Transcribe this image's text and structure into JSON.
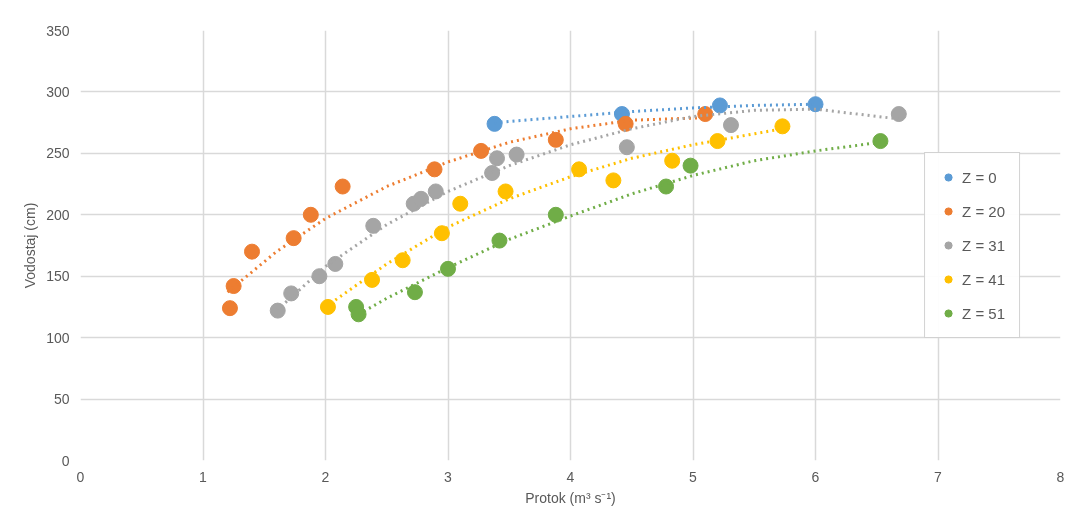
{
  "chart_data": {
    "type": "scatter",
    "xlabel": "Protok (m³ s⁻¹)",
    "ylabel": "Vodostaj (cm)",
    "xlim": [
      0,
      8
    ],
    "ylim": [
      0,
      350
    ],
    "xticks": [
      0,
      1,
      2,
      3,
      4,
      5,
      6,
      7,
      8
    ],
    "yticks": [
      0,
      50,
      100,
      150,
      200,
      250,
      300,
      350
    ],
    "grid": true,
    "legend": "right",
    "marker": "circle",
    "series": [
      {
        "name": "Z = 0",
        "color": "#5b9bd5",
        "x": [
          3.38,
          4.42,
          5.22,
          6.0
        ],
        "values": [
          274,
          282,
          289,
          290
        ]
      },
      {
        "name": "Z = 20",
        "color": "#ed7d31",
        "x": [
          1.22,
          1.25,
          1.4,
          1.74,
          1.88,
          2.14,
          2.89,
          3.27,
          3.88,
          4.45,
          5.1
        ],
        "values": [
          124,
          142,
          170,
          181,
          200,
          223,
          237,
          252,
          261,
          274,
          282
        ]
      },
      {
        "name": "Z = 31",
        "color": "#a5a5a5",
        "x": [
          1.61,
          1.72,
          1.95,
          2.08,
          2.39,
          2.72,
          2.78,
          2.9,
          3.36,
          3.4,
          3.56,
          4.46,
          5.31,
          6.68
        ],
        "values": [
          122,
          136,
          150,
          160,
          191,
          209,
          213,
          219,
          234,
          246,
          249,
          255,
          273,
          282
        ]
      },
      {
        "name": "Z = 41",
        "color": "#ffc000",
        "x": [
          2.02,
          2.38,
          2.63,
          2.95,
          3.1,
          3.47,
          4.07,
          4.35,
          4.83,
          5.2,
          5.73
        ],
        "values": [
          125,
          147,
          163,
          185,
          209,
          219,
          237,
          228,
          244,
          260,
          272
        ]
      },
      {
        "name": "Z = 51",
        "color": "#70ad47",
        "x": [
          2.25,
          2.27,
          2.73,
          3.0,
          3.42,
          3.88,
          4.78,
          4.98,
          6.53
        ],
        "values": [
          125,
          119,
          137,
          156,
          179,
          200,
          223,
          240,
          260
        ]
      },
      {
        "type": "line",
        "marker": "none",
        "line_style": "dotted",
        "color": "#5b9bd5",
        "x": [
          3.38,
          4.0,
          4.5,
          5.0,
          5.5,
          6.0
        ],
        "values": [
          275,
          280,
          284,
          287,
          289,
          290
        ]
      },
      {
        "type": "line",
        "marker": "none",
        "line_style": "dotted",
        "color": "#ed7d31",
        "x": [
          1.2,
          1.6,
          2.0,
          2.5,
          3.0,
          3.5,
          4.0,
          4.5,
          5.1
        ],
        "values": [
          137,
          170,
          197,
          223,
          243,
          259,
          270,
          277,
          279
        ]
      },
      {
        "type": "line",
        "marker": "none",
        "line_style": "dotted",
        "color": "#a5a5a5",
        "x": [
          1.6,
          2.0,
          2.5,
          3.0,
          3.5,
          4.0,
          4.5,
          5.0,
          5.5,
          6.0,
          6.68
        ],
        "values": [
          122,
          158,
          192,
          219,
          240,
          257,
          270,
          280,
          285,
          286,
          278
        ]
      },
      {
        "type": "line",
        "marker": "none",
        "line_style": "dotted",
        "color": "#ffc000",
        "x": [
          2.0,
          2.5,
          3.0,
          3.5,
          4.0,
          4.5,
          5.0,
          5.73
        ],
        "values": [
          125,
          160,
          190,
          213,
          231,
          246,
          257,
          270
        ]
      },
      {
        "type": "line",
        "marker": "none",
        "line_style": "dotted",
        "color": "#70ad47",
        "x": [
          2.27,
          2.5,
          3.0,
          3.5,
          4.0,
          4.5,
          5.0,
          5.5,
          6.0,
          6.53
        ],
        "values": [
          119,
          132,
          157,
          180,
          199,
          217,
          232,
          244,
          252,
          259
        ]
      }
    ]
  }
}
